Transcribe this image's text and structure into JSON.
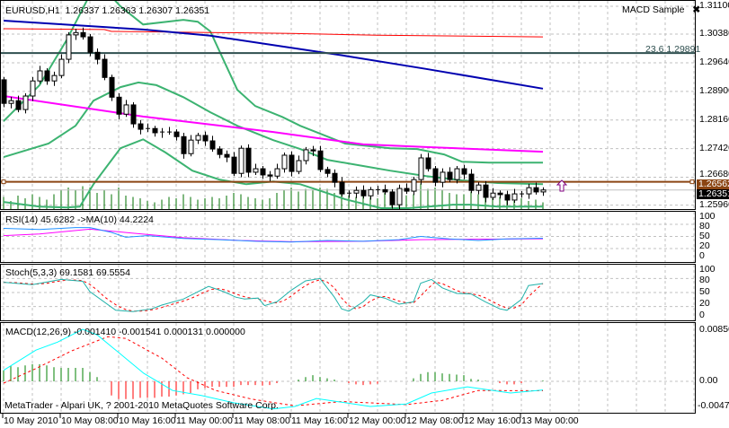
{
  "header": {
    "symbol": "EURUSD,H1",
    "ohlc": "1.26337 1.26363 1.26307 1.26351"
  },
  "expert": {
    "name": "MACD Sample",
    "close_icon": "x-icon"
  },
  "fibo_label": "23.6 1.29891",
  "copyright": "MetaTrader - Alpari UK, ? 2001-2010 MetaQuotes Software Corp.",
  "price_axis": [
    "1.31100",
    "1.30380",
    "1.29640",
    "1.28900",
    "1.28160",
    "1.27420",
    "1.26680",
    "1.25960"
  ],
  "price_axis_values": [
    1.311,
    1.3038,
    1.2964,
    1.289,
    1.2816,
    1.2742,
    1.2668,
    1.2596
  ],
  "price_boxes": {
    "line_level": "1.26562",
    "bid": "1.26351"
  },
  "rsi": {
    "label": "RSI(14) 45.6282  ->MA(10) 44.2224",
    "axis": [
      "100",
      "80",
      "50",
      "20",
      "0"
    ]
  },
  "stoch": {
    "label": "Stoch(5,3,3) 69.1581 69.5554",
    "axis": [
      "100",
      "80",
      "50",
      "20",
      "0"
    ]
  },
  "macd": {
    "label": "MACD(12,26,9) -0.001410 -0.001541 0.000131 0.000000",
    "axis": [
      "0.00850",
      "0.00",
      "-0.00473"
    ]
  },
  "time_axis": [
    "10 May 2010",
    "10 May 08:00",
    "10 May 16:00",
    "11 May 00:00",
    "11 May 08:00",
    "11 May 16:00",
    "12 May 00:00",
    "12 May 08:00",
    "12 May 16:00",
    "13 May 00:00"
  ],
  "colors": {
    "ma_slow": "#0000b0",
    "ma_red": "#ff0000",
    "fibo": "#2f4f4f",
    "ma_magenta": "#ff00ff",
    "bands": "#3cb371",
    "level_line": "#8b4513",
    "volume": "#007000",
    "rsi": "#1e90ff",
    "stoch_main": "#20b2aa",
    "stoch_signal": "#ff0000",
    "macd_main": "#00ffff",
    "macd_signal": "#ff0000",
    "hist_up": "#008000",
    "hist_down": "#ff0000"
  },
  "chart_data": {
    "type": "candlestick",
    "symbol": "EURUSD",
    "timeframe": "H1",
    "first_open": 1.292,
    "closes": [
      1.2859,
      1.2866,
      1.2843,
      1.2878,
      1.2917,
      1.2943,
      1.2917,
      1.2931,
      1.2973,
      1.3036,
      1.3042,
      1.3031,
      1.2991,
      1.2973,
      1.2926,
      1.2875,
      1.2831,
      1.2855,
      1.2806,
      1.2792,
      1.2794,
      1.2783,
      1.2785,
      1.2785,
      1.2773,
      1.2729,
      1.2764,
      1.2776,
      1.2762,
      1.2741,
      1.2727,
      1.272,
      1.2678,
      1.2743,
      1.2681,
      1.269,
      1.2674,
      1.2671,
      1.269,
      1.2725,
      1.2683,
      1.2711,
      1.2739,
      1.2736,
      1.2688,
      1.2678,
      1.2655,
      1.2625,
      1.2627,
      1.2634,
      1.262,
      1.2636,
      1.2636,
      1.263,
      1.2597,
      1.2639,
      1.2632,
      1.2662,
      1.2718,
      1.269,
      1.2655,
      1.2681,
      1.2662,
      1.269,
      1.2676,
      1.2634,
      1.2648,
      1.2616,
      1.2627,
      1.2623,
      1.2609,
      1.2625,
      1.2625,
      1.2641,
      1.263,
      1.26351
    ],
    "volumes": [
      45,
      30,
      50,
      40,
      55,
      45,
      35,
      55,
      70,
      80,
      70,
      85,
      80,
      60,
      70,
      55,
      80,
      50,
      45,
      40,
      30,
      25,
      35,
      45,
      40,
      55,
      45,
      35,
      40,
      45,
      40,
      50,
      60,
      55,
      45,
      40,
      35,
      40,
      60,
      70,
      80,
      65,
      75,
      70,
      80,
      75,
      60,
      55,
      50,
      45,
      50,
      45,
      40,
      60,
      45,
      40,
      50,
      55,
      95,
      75,
      80,
      70,
      60,
      55,
      55,
      65,
      55,
      55,
      40,
      45,
      35,
      30,
      40,
      30,
      35,
      25
    ],
    "ylim": [
      1.2596,
      1.311
    ],
    "lines": {
      "ma_slow": [
        [
          0,
          1.3073
        ],
        [
          19.4,
          1.305
        ],
        [
          28.75,
          1.3034
        ],
        [
          38.75,
          1.3006
        ],
        [
          47.5,
          1.2982
        ],
        [
          58.75,
          1.2948
        ],
        [
          75,
          1.2897
        ]
      ],
      "ma_red": [
        [
          0,
          1.3052
        ],
        [
          14,
          1.305
        ],
        [
          15,
          1.3045
        ],
        [
          40,
          1.304
        ],
        [
          52,
          1.3035
        ],
        [
          75,
          1.3031
        ]
      ],
      "ma_magenta": [
        [
          0,
          1.2878
        ],
        [
          19.4,
          1.2825
        ],
        [
          37.5,
          1.2785
        ],
        [
          50,
          1.2753
        ],
        [
          58.75,
          1.2746
        ],
        [
          75,
          1.2734
        ]
      ],
      "band_upper": [
        [
          0,
          1.2813
        ],
        [
          5,
          1.2906
        ],
        [
          8.75,
          1.3022
        ],
        [
          12,
          1.314
        ],
        [
          15,
          1.3135
        ],
        [
          16.25,
          1.311
        ],
        [
          19.4,
          1.3063
        ],
        [
          25,
          1.3075
        ],
        [
          27,
          1.307
        ],
        [
          28.75,
          1.3045
        ],
        [
          32.5,
          1.2894
        ],
        [
          35,
          1.2852
        ],
        [
          38.75,
          1.2824
        ],
        [
          41.25,
          1.2801
        ],
        [
          47.5,
          1.2755
        ],
        [
          53.75,
          1.2743
        ],
        [
          57.5,
          1.2741
        ],
        [
          61.25,
          1.2727
        ],
        [
          63.75,
          1.2708
        ],
        [
          67.5,
          1.2706
        ],
        [
          75,
          1.2706
        ]
      ],
      "band_middle": [
        [
          0,
          1.272
        ],
        [
          6.25,
          1.2755
        ],
        [
          10,
          1.2801
        ],
        [
          12.5,
          1.2866
        ],
        [
          16.25,
          1.2901
        ],
        [
          18.75,
          1.2913
        ],
        [
          21.25,
          1.2906
        ],
        [
          25,
          1.2875
        ],
        [
          28.75,
          1.2836
        ],
        [
          32.5,
          1.2801
        ],
        [
          37.5,
          1.2764
        ],
        [
          41.25,
          1.2741
        ],
        [
          45,
          1.2713
        ],
        [
          50,
          1.2697
        ],
        [
          53.75,
          1.2685
        ],
        [
          58.75,
          1.2671
        ],
        [
          63.75,
          1.266
        ],
        [
          68.75,
          1.2653
        ],
        [
          75,
          1.265
        ]
      ],
      "band_lower": [
        [
          0,
          1.2604
        ],
        [
          5,
          1.2592
        ],
        [
          8.75,
          1.259
        ],
        [
          10.6,
          1.2592
        ],
        [
          12.5,
          1.265
        ],
        [
          16.25,
          1.2743
        ],
        [
          19.4,
          1.2766
        ],
        [
          22.5,
          1.2732
        ],
        [
          26.25,
          1.2685
        ],
        [
          30,
          1.2662
        ],
        [
          33.75,
          1.265
        ],
        [
          37.5,
          1.2657
        ],
        [
          41.25,
          1.265
        ],
        [
          45,
          1.2627
        ],
        [
          47.5,
          1.2611
        ],
        [
          52.5,
          1.2588
        ],
        [
          56.25,
          1.2588
        ],
        [
          62.5,
          1.2597
        ],
        [
          65,
          1.2597
        ],
        [
          68.75,
          1.2592
        ],
        [
          75,
          1.2592
        ]
      ]
    },
    "fibo_level": 1.29891,
    "level_line": 1.26562,
    "bid": 1.26351,
    "rsi": {
      "period": 14,
      "values": [
        [
          0,
          70
        ],
        [
          5,
          67
        ],
        [
          10,
          72
        ],
        [
          12,
          72
        ],
        [
          15,
          60
        ],
        [
          17,
          48
        ],
        [
          20,
          52
        ],
        [
          25,
          45
        ],
        [
          30,
          42
        ],
        [
          35,
          38
        ],
        [
          40,
          36
        ],
        [
          45,
          40
        ],
        [
          50,
          38
        ],
        [
          55,
          42
        ],
        [
          58,
          50
        ],
        [
          62,
          44
        ],
        [
          66,
          40
        ],
        [
          70,
          44
        ],
        [
          75,
          45.6282
        ]
      ],
      "ma": [
        [
          0,
          52
        ],
        [
          5,
          56
        ],
        [
          12,
          68
        ],
        [
          18,
          58
        ],
        [
          25,
          47
        ],
        [
          33,
          40
        ],
        [
          40,
          37
        ],
        [
          50,
          38
        ],
        [
          58,
          42
        ],
        [
          66,
          43
        ],
        [
          75,
          44.2224
        ]
      ],
      "ylim": [
        0,
        100
      ],
      "levels": [
        20,
        50,
        80
      ]
    },
    "stoch": {
      "main": [
        [
          0,
          72
        ],
        [
          4,
          67
        ],
        [
          8,
          78
        ],
        [
          11,
          74
        ],
        [
          12,
          52
        ],
        [
          15.6,
          12
        ],
        [
          18,
          9
        ],
        [
          20.6,
          15
        ],
        [
          22,
          23
        ],
        [
          25,
          36
        ],
        [
          28.5,
          63
        ],
        [
          30.6,
          52
        ],
        [
          32.3,
          40
        ],
        [
          33.5,
          36
        ],
        [
          35.4,
          38
        ],
        [
          36.3,
          22
        ],
        [
          38,
          30
        ],
        [
          40,
          55
        ],
        [
          42,
          75
        ],
        [
          44,
          80
        ],
        [
          46,
          40
        ],
        [
          47,
          15
        ],
        [
          48,
          10
        ],
        [
          50,
          30
        ],
        [
          51,
          45
        ],
        [
          53,
          38
        ],
        [
          55,
          25
        ],
        [
          57,
          30
        ],
        [
          58,
          70
        ],
        [
          59.5,
          78
        ],
        [
          61,
          60
        ],
        [
          63,
          48
        ],
        [
          65,
          47
        ],
        [
          67,
          30
        ],
        [
          69,
          15
        ],
        [
          70,
          12
        ],
        [
          72,
          35
        ],
        [
          73,
          65
        ],
        [
          75,
          69.1581
        ]
      ],
      "signal_period": 3,
      "signal_last": 69.5554,
      "ylim": [
        0,
        100
      ],
      "levels": [
        20,
        50,
        80
      ]
    },
    "macd": {
      "main": [
        [
          0,
          0.0018
        ],
        [
          4.5,
          0.0051
        ],
        [
          7.5,
          0.0064
        ],
        [
          11,
          0.0085
        ],
        [
          13,
          0.0076
        ],
        [
          16,
          0.0047
        ],
        [
          19.5,
          0.0013
        ],
        [
          23.5,
          -0.0015
        ],
        [
          27.5,
          -0.0023
        ],
        [
          32,
          -0.0035
        ],
        [
          37.5,
          -0.0045
        ],
        [
          40.5,
          -0.0041
        ],
        [
          43.5,
          -0.0028
        ],
        [
          47,
          -0.0034
        ],
        [
          51,
          -0.0041
        ],
        [
          56,
          -0.0037
        ],
        [
          59.5,
          -0.0019
        ],
        [
          64.5,
          -0.0009
        ],
        [
          70.5,
          -0.0019
        ],
        [
          75,
          -0.00141
        ]
      ],
      "signal": [
        [
          0,
          -0.0003
        ],
        [
          4.5,
          0.0021
        ],
        [
          9.5,
          0.005
        ],
        [
          14.5,
          0.0073
        ],
        [
          17,
          0.007
        ],
        [
          22,
          0.0038
        ],
        [
          25.5,
          0.0006
        ],
        [
          29.5,
          -0.0015
        ],
        [
          34.5,
          -0.0029
        ],
        [
          40.5,
          -0.004
        ],
        [
          47,
          -0.0033
        ],
        [
          56,
          -0.0038
        ],
        [
          61,
          -0.0031
        ],
        [
          66,
          -0.0015
        ],
        [
          75,
          -0.001541
        ]
      ],
      "histogram": [
        0.0018,
        0.0025,
        0.0023,
        0.0026,
        0.0028,
        0.0028,
        0.0026,
        0.0023,
        0.0022,
        0.0022,
        0.0022,
        0.0022,
        0.0015,
        0.0007,
        0,
        -0.0023,
        -0.0029,
        -0.0029,
        -0.0029,
        -0.0027,
        -0.0027,
        -0.0027,
        -0.0025,
        -0.0025,
        -0.0023,
        -0.0021,
        -0.0019,
        -0.0013,
        -0.0011,
        -0.0009,
        -0.0009,
        -0.0009,
        -0.0009,
        -0.0006,
        -0.0006,
        -0.0006,
        -0.0007,
        -0.0006,
        -0.0003,
        0,
        0,
        0.0003,
        0.0007,
        0.001,
        0.0007,
        0.0005,
        0.0003,
        0,
        -0.0003,
        -0.0005,
        -0.0006,
        -0.0005,
        -0.0004,
        0,
        0,
        0,
        0,
        0.0005,
        0.0012,
        0.0015,
        0.0015,
        0.0013,
        0.0012,
        0.0011,
        0.001,
        0.0004,
        0.0003,
        0.0001,
        0,
        -0.0003,
        -0.0005,
        -0.0005,
        -0.0003,
        0,
        0,
        0.000131
      ],
      "ylim": [
        -0.00473,
        0.0085
      ]
    }
  }
}
